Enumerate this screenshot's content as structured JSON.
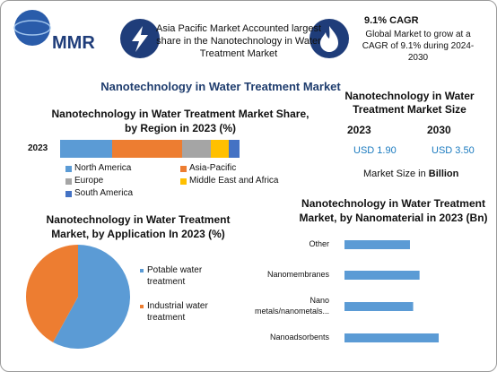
{
  "header": {
    "logo": "MMR",
    "highlight": "Asia Pacific Market Accounted largest share in the Nanotechnology in Water Treatment Market",
    "cagr_title": "9.1% CAGR",
    "cagr_text": "Global Market to grow at a CAGR of 9.1% during 2024-2030"
  },
  "title": "Nanotechnology in Water Treatment Market",
  "market_size": {
    "title": "Nanotechnology in Water Treatment Market Size",
    "years": [
      "2023",
      "2030"
    ],
    "values": [
      "USD 1.90",
      "USD 3.50"
    ],
    "note": "Market Size in",
    "note_unit": "Billion"
  },
  "chart_data": [
    {
      "type": "stacked_bar",
      "title": "Nanotechnology in Water Treatment Market Share, by Region in 2023 (%)",
      "categories": [
        "2023"
      ],
      "series": [
        {
          "name": "North America",
          "color": "#5b9bd5",
          "values": [
            29
          ]
        },
        {
          "name": "Asia-Pacific",
          "color": "#ed7d31",
          "values": [
            39
          ]
        },
        {
          "name": "Europe",
          "color": "#a5a5a5",
          "values": [
            16
          ]
        },
        {
          "name": "Middle East and Africa",
          "color": "#ffc000",
          "values": [
            10
          ]
        },
        {
          "name": "South America",
          "color": "#4472c4",
          "values": [
            6
          ]
        }
      ]
    },
    {
      "type": "pie",
      "title": "Nanotechnology in Water Treatment Market, by Application In 2023 (%)",
      "categories": [
        "Potable water treatment",
        "Industrial water treatment"
      ],
      "values": [
        58,
        42
      ],
      "colors": [
        "#5b9bd5",
        "#ed7d31"
      ]
    },
    {
      "type": "bar",
      "title": "Nanotechnology in Water Treatment Market, by Nanomaterial in 2023 (Bn)",
      "categories": [
        "Other",
        "Nanomembranes",
        "Nano metals/nanometals...",
        "Nanoadsorbents"
      ],
      "values": [
        0.41,
        0.47,
        0.43,
        0.59
      ],
      "color": "#5b9bd5"
    }
  ]
}
